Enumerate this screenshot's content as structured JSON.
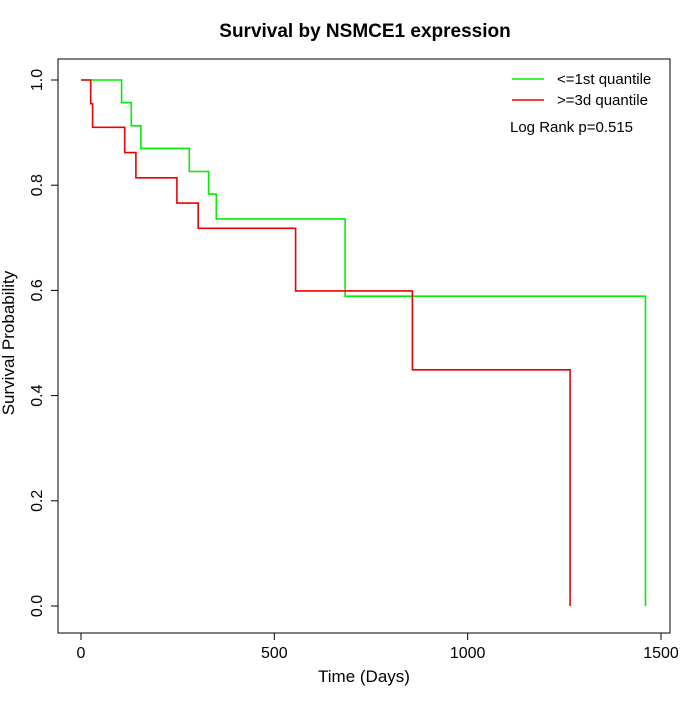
{
  "chart_data": {
    "type": "line",
    "title": "Survival by NSMCE1 expression",
    "xlabel": "Time (Days)",
    "ylabel": "Survival Probability",
    "xlim": [
      0,
      1500
    ],
    "ylim": [
      0,
      1.0
    ],
    "x_ticks": [
      {
        "value": 0,
        "label": "0"
      },
      {
        "value": 500,
        "label": "500"
      },
      {
        "value": 1000,
        "label": "1000"
      },
      {
        "value": 1500,
        "label": "1500"
      }
    ],
    "y_ticks": [
      {
        "value": 0.0,
        "label": "0.0"
      },
      {
        "value": 0.2,
        "label": "0.2"
      },
      {
        "value": 0.4,
        "label": "0.4"
      },
      {
        "value": 0.6,
        "label": "0.6"
      },
      {
        "value": 0.8,
        "label": "0.8"
      },
      {
        "value": 1.0,
        "label": "1.0"
      }
    ],
    "grid": false,
    "legend_position": "top-right",
    "annotation": "Log Rank p=0.515",
    "series": [
      {
        "name": "<=1st quantile",
        "color": "#00ee00",
        "step": true,
        "points": [
          [
            0,
            1.0
          ],
          [
            105,
            1.0
          ],
          [
            105,
            0.957
          ],
          [
            130,
            0.957
          ],
          [
            130,
            0.913
          ],
          [
            155,
            0.913
          ],
          [
            155,
            0.87
          ],
          [
            280,
            0.87
          ],
          [
            280,
            0.826
          ],
          [
            330,
            0.826
          ],
          [
            330,
            0.783
          ],
          [
            350,
            0.783
          ],
          [
            350,
            0.736
          ],
          [
            683,
            0.736
          ],
          [
            683,
            0.589
          ],
          [
            1460,
            0.589
          ],
          [
            1460,
            0.0
          ]
        ]
      },
      {
        "name": ">=3d quantile",
        "color": "#ee0000",
        "step": true,
        "points": [
          [
            0,
            1.0
          ],
          [
            25,
            1.0
          ],
          [
            25,
            0.955
          ],
          [
            30,
            0.955
          ],
          [
            30,
            0.91
          ],
          [
            113,
            0.91
          ],
          [
            113,
            0.862
          ],
          [
            142,
            0.862
          ],
          [
            142,
            0.814
          ],
          [
            248,
            0.814
          ],
          [
            248,
            0.766
          ],
          [
            303,
            0.766
          ],
          [
            303,
            0.718
          ],
          [
            555,
            0.718
          ],
          [
            555,
            0.599
          ],
          [
            857,
            0.599
          ],
          [
            857,
            0.449
          ],
          [
            1265,
            0.449
          ],
          [
            1265,
            0.0
          ]
        ]
      }
    ]
  }
}
